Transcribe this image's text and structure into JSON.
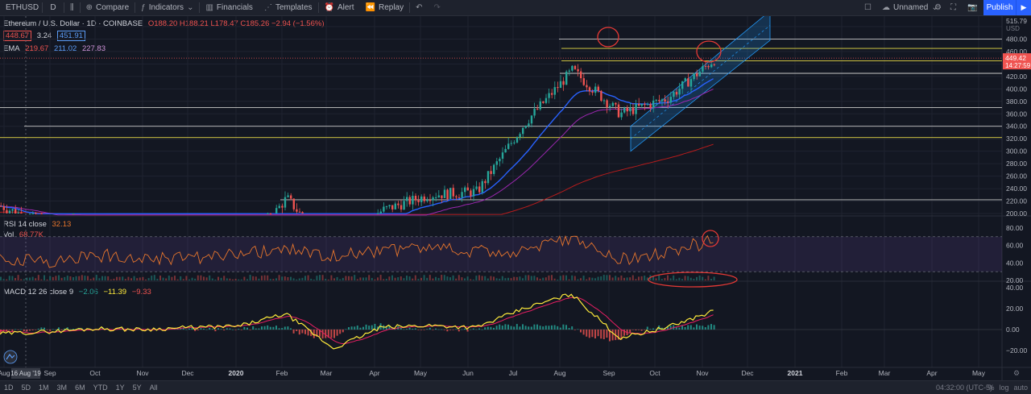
{
  "toolbar": {
    "symbol": "ETHUSD",
    "interval": "D",
    "compare": "Compare",
    "indicators": "Indicators",
    "financials": "Financials",
    "templates": "Templates",
    "alert": "Alert",
    "replay": "Replay",
    "layout_name": "Unnamed",
    "publish": "Publish"
  },
  "legend": {
    "title": "Ethereum / U.S. Dollar · 1D · COINBASE",
    "ohlc": "O188.20 H188.21 L178.47 C185.26 −2.94 (−1.56%)",
    "bid": "448.67",
    "spread": "3.24",
    "ask": "451.91",
    "ema_label": "EMA",
    "ema_values": [
      "219.67",
      "211.02",
      "227.83"
    ],
    "rsi_label": "RSI 14 close",
    "rsi_value": "32.13",
    "vol_label": "Vol",
    "vol_value": "68.77K",
    "macd_label": "MACD 12 26 close 9",
    "macd_values": [
      "−2.06",
      "−11.39",
      "−9.33"
    ]
  },
  "price_axis": {
    "unit": "USD",
    "ticks": [
      "500.00",
      "480.00",
      "460.00",
      "440.00",
      "420.00",
      "400.00",
      "380.00",
      "360.00",
      "340.00",
      "320.00",
      "300.00",
      "280.00",
      "260.00",
      "240.00",
      "220.00",
      "200.00"
    ],
    "top_label": "515.79",
    "current_price": "449.42",
    "countdown": "14:27:59"
  },
  "rsi_axis": {
    "ticks": [
      "80.00",
      "60.00",
      "40.00",
      "20.00"
    ]
  },
  "macd_axis": {
    "ticks": [
      "40.00",
      "20.00",
      "0.00",
      "−20.00"
    ]
  },
  "time_axis": {
    "labels": [
      "Aug",
      "Sep",
      "Oct",
      "Nov",
      "Dec",
      "2020",
      "Feb",
      "Mar",
      "Apr",
      "May",
      "Jun",
      "Jul",
      "Aug",
      "Sep",
      "Oct",
      "Nov",
      "Dec",
      "2021",
      "Feb",
      "Mar",
      "Apr",
      "May"
    ],
    "cursor_label": "16 Aug '19"
  },
  "ranges": [
    "1D",
    "5D",
    "1M",
    "3M",
    "6M",
    "YTD",
    "1Y",
    "5Y",
    "All"
  ],
  "status": {
    "time": "04:32:00 (UTC-5)",
    "percent": "%",
    "log": "log",
    "auto": "auto"
  },
  "colors": {
    "up": "#26a69a",
    "down": "#ef5350",
    "ema_blue": "#2962ff",
    "ema_purple": "#9c27b0",
    "ema_red": "#b71c1c",
    "rsi": "#e8762c",
    "macd": "#ffeb3b",
    "signal": "#e91e63",
    "channel": "#2196f3",
    "annotation": "#e53935"
  },
  "chart_data": {
    "type": "candlestick",
    "symbol": "ETHUSD",
    "x": [
      "Aug '19",
      "Sep",
      "Oct",
      "Nov",
      "Dec",
      "2020",
      "Feb",
      "Mar",
      "Apr",
      "May",
      "Jun",
      "Jul",
      "Aug",
      "Sep",
      "Oct",
      "Nov"
    ],
    "close_by_month": [
      212,
      180,
      182,
      152,
      130,
      130,
      225,
      133,
      205,
      230,
      235,
      345,
      430,
      360,
      385,
      449
    ],
    "rsi": [
      46,
      41,
      49,
      47,
      44,
      49,
      55,
      48,
      54,
      57,
      52,
      55,
      70,
      44,
      51,
      67
    ],
    "macd": [
      -4,
      -2,
      1,
      0,
      2,
      3,
      15,
      -18,
      2,
      4,
      2,
      20,
      34,
      -8,
      2,
      18
    ],
    "y_range": [
      200,
      515
    ],
    "horizontal_levels": [
      480,
      465,
      445,
      425,
      370,
      340,
      322,
      222
    ],
    "current_price": 449.42
  }
}
